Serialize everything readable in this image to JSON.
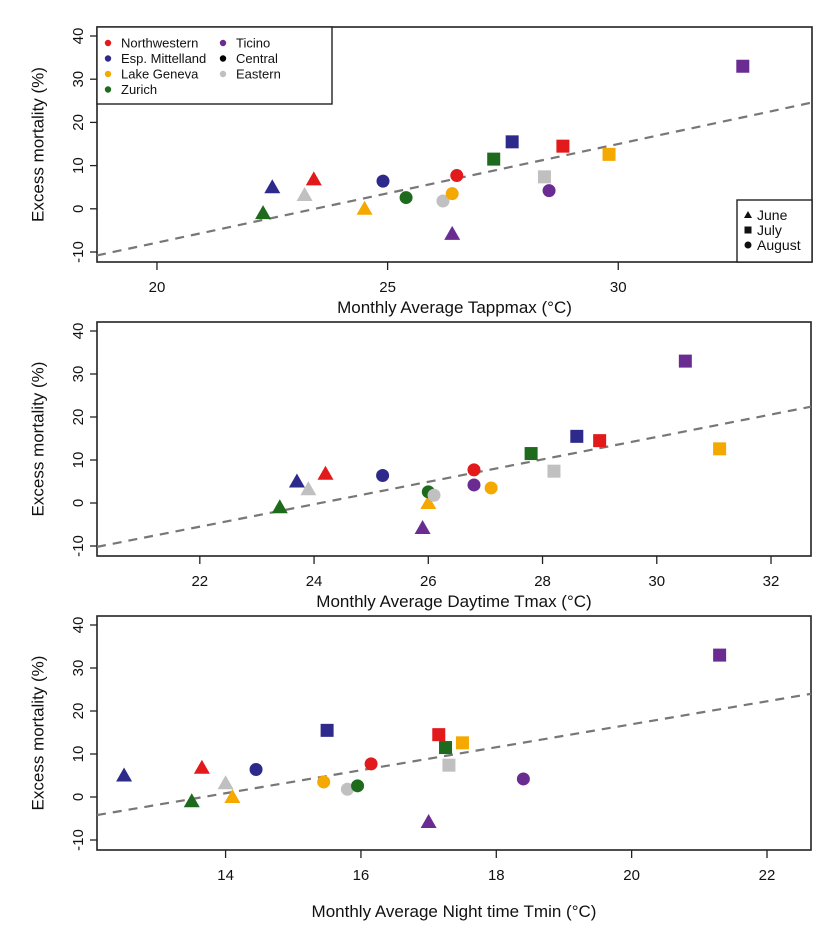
{
  "figure": {
    "region_legend": [
      {
        "name": "Northwestern",
        "color": "#e31a1c"
      },
      {
        "name": "Esp. Mittelland",
        "color": "#2e2a8c"
      },
      {
        "name": "Lake Geneva",
        "color": "#f5a800"
      },
      {
        "name": "Zurich",
        "color": "#1e6b1e"
      },
      {
        "name": "Ticino",
        "color": "#6a2c91"
      },
      {
        "name": "Central",
        "color": "#000000"
      },
      {
        "name": "Eastern",
        "color": "#c0c0c0"
      }
    ],
    "month_legend": [
      {
        "name": "June",
        "shape": "triangle"
      },
      {
        "name": "July",
        "shape": "square"
      },
      {
        "name": "August",
        "shape": "circle"
      }
    ]
  },
  "chart_data": [
    {
      "type": "scatter",
      "title": "",
      "xlabel": "Monthly Average Tappmax (°C)",
      "ylabel": "Excess mortality (%)",
      "xlim": [
        18.7,
        34.2
      ],
      "ylim": [
        -11,
        41
      ],
      "xticks": [
        20,
        25,
        30
      ],
      "yticks": [
        -10,
        0,
        10,
        20,
        30,
        40
      ],
      "grid": false,
      "legend": "top-left (regions), bottom-right (months)",
      "trend_line": {
        "style": "dashed",
        "color": "#777777",
        "x": [
          18.7,
          34.2
        ],
        "y": [
          -10.8,
          24.6
        ]
      },
      "points": [
        {
          "region": "Zurich",
          "month": "June",
          "x": 22.3,
          "y": -1.0
        },
        {
          "region": "Esp. Mittelland",
          "month": "June",
          "x": 22.5,
          "y": 5.0
        },
        {
          "region": "Eastern",
          "month": "June",
          "x": 23.2,
          "y": 3.2
        },
        {
          "region": "Northwestern",
          "month": "June",
          "x": 23.4,
          "y": 6.8
        },
        {
          "region": "Lake Geneva",
          "month": "June",
          "x": 24.5,
          "y": 0.0
        },
        {
          "region": "Ticino",
          "month": "June",
          "x": 26.4,
          "y": -5.8
        },
        {
          "region": "Zurich",
          "month": "July",
          "x": 27.3,
          "y": 11.5
        },
        {
          "region": "Esp. Mittelland",
          "month": "July",
          "x": 27.7,
          "y": 15.5
        },
        {
          "region": "Eastern",
          "month": "July",
          "x": 28.4,
          "y": 7.4
        },
        {
          "region": "Northwestern",
          "month": "July",
          "x": 28.8,
          "y": 14.5
        },
        {
          "region": "Lake Geneva",
          "month": "July",
          "x": 29.8,
          "y": 12.6
        },
        {
          "region": "Ticino",
          "month": "July",
          "x": 32.7,
          "y": 33.0
        },
        {
          "region": "Esp. Mittelland",
          "month": "August",
          "x": 24.9,
          "y": 6.4
        },
        {
          "region": "Zurich",
          "month": "August",
          "x": 25.4,
          "y": 2.6
        },
        {
          "region": "Eastern",
          "month": "August",
          "x": 26.2,
          "y": 1.8
        },
        {
          "region": "Lake Geneva",
          "month": "August",
          "x": 26.4,
          "y": 3.5
        },
        {
          "region": "Northwestern",
          "month": "August",
          "x": 26.5,
          "y": 7.7
        },
        {
          "region": "Ticino",
          "month": "August",
          "x": 28.5,
          "y": 4.2
        }
      ]
    },
    {
      "type": "scatter",
      "title": "",
      "xlabel": "Monthly Average Daytime Tmax (°C)",
      "ylabel": "Excess mortality (%)",
      "xlim": [
        20.2,
        32.7
      ],
      "ylim": [
        -11,
        41
      ],
      "xticks": [
        22,
        24,
        26,
        28,
        30,
        32
      ],
      "yticks": [
        -10,
        0,
        10,
        20,
        30,
        40
      ],
      "grid": false,
      "trend_line": {
        "style": "dashed",
        "color": "#777777",
        "x": [
          20.2,
          32.7
        ],
        "y": [
          -10.2,
          22.4
        ]
      },
      "points": [
        {
          "region": "Zurich",
          "month": "June",
          "x": 23.4,
          "y": -1.0
        },
        {
          "region": "Esp. Mittelland",
          "month": "June",
          "x": 23.7,
          "y": 5.0
        },
        {
          "region": "Eastern",
          "month": "June",
          "x": 23.9,
          "y": 3.2
        },
        {
          "region": "Northwestern",
          "month": "June",
          "x": 24.2,
          "y": 6.8
        },
        {
          "region": "Lake Geneva",
          "month": "June",
          "x": 26.0,
          "y": 0.0
        },
        {
          "region": "Ticino",
          "month": "June",
          "x": 25.9,
          "y": -5.8
        },
        {
          "region": "Zurich",
          "month": "July",
          "x": 27.8,
          "y": 11.5
        },
        {
          "region": "Esp. Mittelland",
          "month": "July",
          "x": 28.6,
          "y": 15.5
        },
        {
          "region": "Eastern",
          "month": "July",
          "x": 28.2,
          "y": 7.4
        },
        {
          "region": "Northwestern",
          "month": "July",
          "x": 29.0,
          "y": 14.5
        },
        {
          "region": "Lake Geneva",
          "month": "July",
          "x": 31.1,
          "y": 12.6
        },
        {
          "region": "Ticino",
          "month": "July",
          "x": 30.5,
          "y": 33.0
        },
        {
          "region": "Esp. Mittelland",
          "month": "August",
          "x": 25.2,
          "y": 6.4
        },
        {
          "region": "Zurich",
          "month": "August",
          "x": 26.0,
          "y": 2.6
        },
        {
          "region": "Eastern",
          "month": "August",
          "x": 26.1,
          "y": 1.8
        },
        {
          "region": "Northwestern",
          "month": "August",
          "x": 26.8,
          "y": 7.7
        },
        {
          "region": "Ticino",
          "month": "August",
          "x": 26.8,
          "y": 4.2
        },
        {
          "region": "Lake Geneva",
          "month": "August",
          "x": 27.1,
          "y": 3.5
        }
      ]
    },
    {
      "type": "scatter",
      "title": "",
      "xlabel": "Monthly Average Night time Tmin (°C)",
      "ylabel": "Excess mortality (%)",
      "xlim": [
        12.1,
        22.65
      ],
      "ylim": [
        -11,
        41
      ],
      "xticks": [
        14,
        16,
        18,
        20,
        22
      ],
      "yticks": [
        -10,
        0,
        10,
        20,
        30,
        40
      ],
      "grid": false,
      "trend_line": {
        "style": "dashed",
        "color": "#777777",
        "x": [
          12.1,
          22.65
        ],
        "y": [
          -4.2,
          24.0
        ]
      },
      "points": [
        {
          "region": "Esp. Mittelland",
          "month": "June",
          "x": 12.5,
          "y": 5.0
        },
        {
          "region": "Zurich",
          "month": "June",
          "x": 13.5,
          "y": -1.0
        },
        {
          "region": "Northwestern",
          "month": "June",
          "x": 13.65,
          "y": 6.8
        },
        {
          "region": "Eastern",
          "month": "June",
          "x": 14.0,
          "y": 3.2
        },
        {
          "region": "Lake Geneva",
          "month": "June",
          "x": 14.1,
          "y": 0.0
        },
        {
          "region": "Ticino",
          "month": "June",
          "x": 17.0,
          "y": -5.8
        },
        {
          "region": "Esp. Mittelland",
          "month": "July",
          "x": 15.5,
          "y": 15.5
        },
        {
          "region": "Northwestern",
          "month": "July",
          "x": 17.15,
          "y": 14.5
        },
        {
          "region": "Zurich",
          "month": "July",
          "x": 17.25,
          "y": 11.5
        },
        {
          "region": "Lake Geneva",
          "month": "July",
          "x": 17.5,
          "y": 12.6
        },
        {
          "region": "Eastern",
          "month": "July",
          "x": 17.3,
          "y": 7.4
        },
        {
          "region": "Ticino",
          "month": "July",
          "x": 21.3,
          "y": 33.0
        },
        {
          "region": "Esp. Mittelland",
          "month": "August",
          "x": 14.45,
          "y": 6.4
        },
        {
          "region": "Lake Geneva",
          "month": "August",
          "x": 15.45,
          "y": 3.5
        },
        {
          "region": "Eastern",
          "month": "August",
          "x": 15.8,
          "y": 1.8
        },
        {
          "region": "Zurich",
          "month": "August",
          "x": 15.95,
          "y": 2.6
        },
        {
          "region": "Northwestern",
          "month": "August",
          "x": 16.15,
          "y": 7.7
        },
        {
          "region": "Ticino",
          "month": "August",
          "x": 18.4,
          "y": 4.2
        }
      ]
    }
  ]
}
